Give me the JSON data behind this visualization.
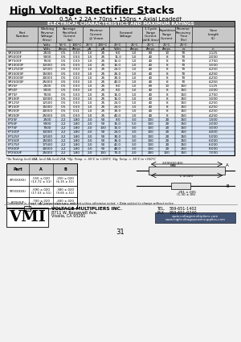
{
  "title": "High Voltage Rectifier Stacks",
  "subtitle": "0.5A • 2.2A • 70ns • 150ns • Axial Leaded†",
  "table_title": "ELECTRICAL CHARACTERISTICS AND MAXIMUM RATINGS",
  "col_headers_line1": [
    "Part Number",
    "Working\nReverse\nVoltage\n(Vrm)",
    "Average\nRectified\nCurrent\n(Io)",
    "",
    "Reverse\nCurrent\n@ Vrwm",
    "",
    "Forward Voltage",
    "",
    "1 Cycle\nSurge\nCurrent\nIpk(8.3ms)",
    "Repetitive\nSurge\nCurrent",
    "Reverse\nRecovery\nTime\n(Trr)",
    "Case\nLength\n(L)"
  ],
  "col_headers_units": [
    "",
    "(Vrm)",
    "(Io)",
    "",
    "",
    "",
    "",
    "",
    "",
    "",
    "",
    ""
  ],
  "sub_headers": [
    "",
    "Volts",
    "55°C",
    "100°C",
    "μA\n25°C",
    "μA\n100°C",
    "Volts\n25°C",
    "Amps\n25°C",
    "Amps\n25°C",
    "Amps\n25°C",
    "ns\n25°C",
    "in"
  ],
  "rows": [
    [
      "SP2500F",
      "2500",
      "0.5",
      "0.33",
      "1.0",
      "25",
      "8.0",
      "1.0",
      "80",
      "10",
      "70",
      "1.125"
    ],
    [
      "SP5000F",
      "5000",
      "0.5",
      "0.33",
      "1.0",
      "25",
      "11.0",
      "1.0",
      "40",
      "8",
      "70",
      "2.000"
    ],
    [
      "SP7500F",
      "7500",
      "0.5",
      "0.33",
      "1.0",
      "25",
      "16.0",
      "1.0",
      "40",
      "8",
      "70",
      "2.750"
    ],
    [
      "SP10000F",
      "10000",
      "0.5",
      "0.33",
      "1.0",
      "25",
      "16.0",
      "1.0",
      "40",
      "8",
      "70",
      "3.000"
    ],
    [
      "SP12500F",
      "12500",
      "0.5",
      "0.33",
      "1.0",
      "25",
      "24.0",
      "1.0",
      "40",
      "8",
      "70",
      "4.250"
    ],
    [
      "SP15000F",
      "15000",
      "0.5",
      "0.33",
      "1.0",
      "25",
      "26.0",
      "1.0",
      "40",
      "8",
      "70",
      "4.250"
    ],
    [
      "SP20000F",
      "20000",
      "0.5",
      "0.33",
      "1.0",
      "25",
      "30.0",
      "1.0",
      "40",
      "8",
      "70",
      "4.250"
    ],
    [
      "SP25000F",
      "25000",
      "0.5",
      "0.33",
      "1.0",
      "25",
      "40.0",
      "1.0",
      "40",
      "8",
      "70",
      "4.250"
    ],
    [
      "SP25F",
      "2500",
      "0.5",
      "0.33",
      "1.0",
      "25",
      "8.0",
      "1.0",
      "80",
      "10",
      "150",
      "1.125"
    ],
    [
      "SP50F",
      "5000",
      "0.5",
      "0.33",
      "1.0",
      "25",
      "8.0",
      "1.0",
      "40",
      "8",
      "150",
      "2.000"
    ],
    [
      "SP75F",
      "7500",
      "0.5",
      "0.33",
      "1.0",
      "25",
      "16.0",
      "1.0",
      "40",
      "8",
      "150",
      "2.750"
    ],
    [
      "SP100F",
      "10000",
      "0.5",
      "0.33",
      "1.0",
      "25",
      "16.0",
      "1.0",
      "40",
      "8",
      "150",
      "3.000"
    ],
    [
      "SP125F",
      "12500",
      "0.5",
      "0.33",
      "1.0",
      "25",
      "24.0",
      "1.0",
      "40",
      "8",
      "150",
      "4.250"
    ],
    [
      "SP150F",
      "15000",
      "0.5",
      "0.33",
      "1.0",
      "25",
      "24.0",
      "1.0",
      "40",
      "8",
      "150",
      "4.250"
    ],
    [
      "SP200F",
      "20000",
      "0.5",
      "0.11",
      "1.0",
      "25",
      "30.0",
      "1.0",
      "40",
      "8",
      "150",
      "4.250"
    ],
    [
      "SP250F",
      "25000",
      "0.5",
      "0.33",
      "1.0",
      "25",
      "40.0",
      "1.0",
      "40",
      "8",
      "150",
      "4.250"
    ],
    [
      "FP25F",
      "2500",
      "2.2",
      "1.80",
      "2.0",
      "50",
      "8.0",
      "3.0",
      "100",
      "20",
      "150",
      "1.500"
    ],
    [
      "FP50F",
      "5000",
      "2.2",
      "1.80",
      "2.0",
      "50",
      "16.0",
      "5.0",
      "100",
      "20",
      "150",
      "2.000"
    ],
    [
      "FP75F",
      "7500",
      "2.2",
      "1.80",
      "2.0",
      "100",
      "15.0",
      "3.0",
      "100",
      "20",
      "150",
      "3.000"
    ],
    [
      "FP100F",
      "10000",
      "2.2",
      "1.80",
      "2.0",
      "50",
      "24.0",
      "3.0",
      "100",
      "20",
      "150",
      "4.000"
    ],
    [
      "FP125F",
      "12500",
      "2.2",
      "1.80",
      "2.0",
      "50",
      "30.0",
      "3.0",
      "100",
      "20",
      "150",
      "5.000"
    ],
    [
      "FP150F",
      "15000",
      "2.2",
      "1.80",
      "2.0",
      "50",
      "36.0",
      "3.0",
      "100",
      "20",
      "150",
      "6.000"
    ],
    [
      "FP175F",
      "17500",
      "2.2",
      "1.80",
      "2.0",
      "50",
      "42.0",
      "3.0",
      "100",
      "20",
      "150",
      "6.000"
    ],
    [
      "FP200F",
      "20000",
      "2.2",
      "1.80",
      "2.0",
      "50",
      "48.0",
      "3.0",
      "100",
      "20",
      "150",
      "8.000"
    ],
    [
      "FP250UF",
      "25000",
      "2.2",
      "1.80",
      "2.0",
      "100",
      "75.0",
      "2.0",
      "200",
      "100",
      "150",
      "7.000"
    ]
  ],
  "footnote": "*(Io Testing: Io=0.44A, Io=1.9A, Io=0.25A  *Op. Temp. = -55°C to +150°C  Stg. Temp. = -55°C to +150°C",
  "dim_rows": [
    [
      "SP(XXXXX)",
      ".550 ±.020\n(13.72 ±.51)",
      ".250 ±.020\n(6.35 ±.51)"
    ],
    [
      "SP(XXXXX)",
      ".690 ±.020\n(17.53 ±.51)",
      ".380 ±.020\n(9.65 ±.51)"
    ],
    [
      "FP250UF",
      ".700 ±.020\n(17.78 ±.51)",
      ".400 ±.020\n(10.16 ±.51)"
    ]
  ],
  "company": "VOLTAGE MULTIPLIERS INC.",
  "address1": "8711 W. Roosevelt Ave.",
  "address2": "Visalia, CA 93291",
  "tel": "559-651-1402",
  "fax": "559-651-0740",
  "web1": "www.voltagemultipliers.com",
  "web2": "www.highvoltagepowersupplies.com",
  "page": "31",
  "bg_color": "#f2f2f2"
}
